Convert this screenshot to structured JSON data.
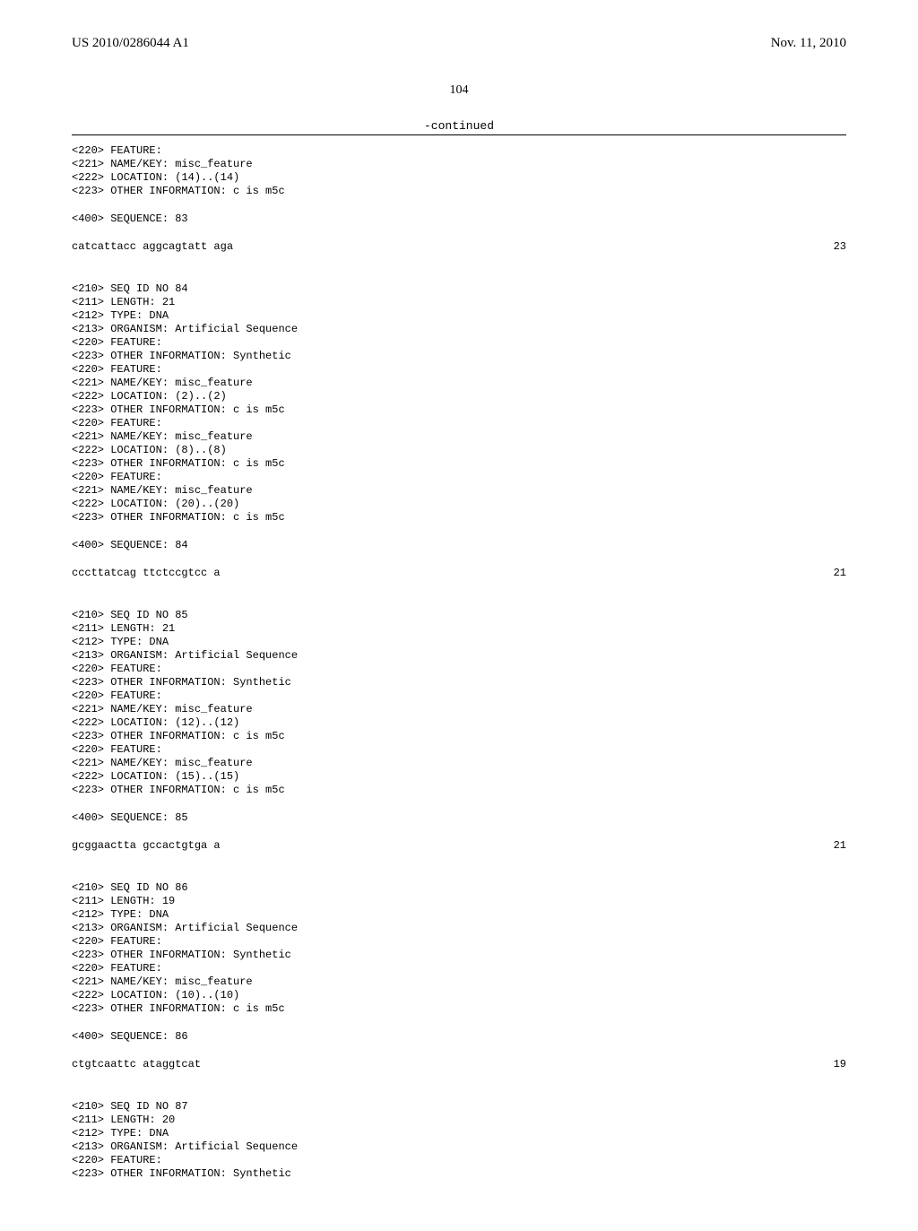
{
  "header": {
    "left": "US 2010/0286044 A1",
    "right": "Nov. 11, 2010"
  },
  "page_number": "104",
  "continued_label": "-continued",
  "entries": [
    {
      "lines": [
        "<220> FEATURE:",
        "<221> NAME/KEY: misc_feature",
        "<222> LOCATION: (14)..(14)",
        "<223> OTHER INFORMATION: c is m5c"
      ]
    },
    {
      "lines": [
        "<400> SEQUENCE: 83"
      ]
    },
    {
      "sequence": "catcattacc aggcagtatt aga",
      "length": "23"
    },
    {
      "lines": [
        "<210> SEQ ID NO 84",
        "<211> LENGTH: 21",
        "<212> TYPE: DNA",
        "<213> ORGANISM: Artificial Sequence",
        "<220> FEATURE:",
        "<223> OTHER INFORMATION: Synthetic",
        "<220> FEATURE:",
        "<221> NAME/KEY: misc_feature",
        "<222> LOCATION: (2)..(2)",
        "<223> OTHER INFORMATION: c is m5c",
        "<220> FEATURE:",
        "<221> NAME/KEY: misc_feature",
        "<222> LOCATION: (8)..(8)",
        "<223> OTHER INFORMATION: c is m5c",
        "<220> FEATURE:",
        "<221> NAME/KEY: misc_feature",
        "<222> LOCATION: (20)..(20)",
        "<223> OTHER INFORMATION: c is m5c"
      ]
    },
    {
      "lines": [
        "<400> SEQUENCE: 84"
      ]
    },
    {
      "sequence": "cccttatcag ttctccgtcc a",
      "length": "21"
    },
    {
      "lines": [
        "<210> SEQ ID NO 85",
        "<211> LENGTH: 21",
        "<212> TYPE: DNA",
        "<213> ORGANISM: Artificial Sequence",
        "<220> FEATURE:",
        "<223> OTHER INFORMATION: Synthetic",
        "<220> FEATURE:",
        "<221> NAME/KEY: misc_feature",
        "<222> LOCATION: (12)..(12)",
        "<223> OTHER INFORMATION: c is m5c",
        "<220> FEATURE:",
        "<221> NAME/KEY: misc_feature",
        "<222> LOCATION: (15)..(15)",
        "<223> OTHER INFORMATION: c is m5c"
      ]
    },
    {
      "lines": [
        "<400> SEQUENCE: 85"
      ]
    },
    {
      "sequence": "gcggaactta gccactgtga a",
      "length": "21"
    },
    {
      "lines": [
        "<210> SEQ ID NO 86",
        "<211> LENGTH: 19",
        "<212> TYPE: DNA",
        "<213> ORGANISM: Artificial Sequence",
        "<220> FEATURE:",
        "<223> OTHER INFORMATION: Synthetic",
        "<220> FEATURE:",
        "<221> NAME/KEY: misc_feature",
        "<222> LOCATION: (10)..(10)",
        "<223> OTHER INFORMATION: c is m5c"
      ]
    },
    {
      "lines": [
        "<400> SEQUENCE: 86"
      ]
    },
    {
      "sequence": "ctgtcaattc ataggtcat",
      "length": "19"
    },
    {
      "lines": [
        "<210> SEQ ID NO 87",
        "<211> LENGTH: 20",
        "<212> TYPE: DNA",
        "<213> ORGANISM: Artificial Sequence",
        "<220> FEATURE:",
        "<223> OTHER INFORMATION: Synthetic"
      ]
    }
  ]
}
